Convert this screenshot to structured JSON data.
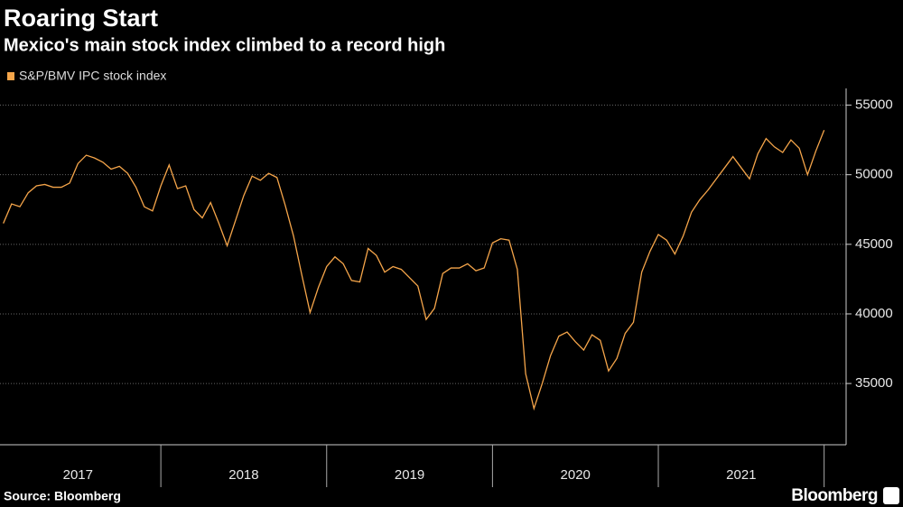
{
  "chart_data": {
    "type": "line",
    "title": "Roaring Start",
    "subtitle": "Mexico's main stock index climbed to a record high",
    "source": "Source: Bloomberg",
    "brand": "Bloomberg",
    "xlim": [
      2017.03,
      2022.04
    ],
    "xticks": [
      2018,
      2019,
      2020,
      2021,
      2022
    ],
    "year_labels": [
      2017,
      2018,
      2019,
      2020,
      2021
    ],
    "ylim": [
      30600,
      56200
    ],
    "yticks": [
      35000,
      40000,
      45000,
      50000,
      55000
    ],
    "grid": true,
    "series": [
      {
        "name": "S&P/BMV IPC stock index",
        "color": "#f5a54a",
        "x": [
          2017.05,
          2017.1,
          2017.15,
          2017.2,
          2017.25,
          2017.3,
          2017.35,
          2017.4,
          2017.45,
          2017.5,
          2017.55,
          2017.6,
          2017.65,
          2017.7,
          2017.75,
          2017.8,
          2017.85,
          2017.9,
          2017.95,
          2018.0,
          2018.05,
          2018.1,
          2018.15,
          2018.2,
          2018.25,
          2018.3,
          2018.35,
          2018.4,
          2018.45,
          2018.5,
          2018.55,
          2018.6,
          2018.65,
          2018.7,
          2018.75,
          2018.8,
          2018.85,
          2018.9,
          2018.95,
          2019.0,
          2019.05,
          2019.1,
          2019.15,
          2019.2,
          2019.25,
          2019.3,
          2019.35,
          2019.4,
          2019.45,
          2019.5,
          2019.55,
          2019.6,
          2019.65,
          2019.7,
          2019.75,
          2019.8,
          2019.85,
          2019.9,
          2019.95,
          2020.0,
          2020.05,
          2020.1,
          2020.15,
          2020.2,
          2020.25,
          2020.3,
          2020.35,
          2020.4,
          2020.45,
          2020.5,
          2020.55,
          2020.6,
          2020.65,
          2020.7,
          2020.75,
          2020.8,
          2020.85,
          2020.9,
          2020.95,
          2021.0,
          2021.05,
          2021.1,
          2021.15,
          2021.2,
          2021.25,
          2021.3,
          2021.35,
          2021.4,
          2021.45,
          2021.5,
          2021.55,
          2021.6,
          2021.65,
          2021.7,
          2021.75,
          2021.8,
          2021.85,
          2021.9,
          2021.95,
          2022.0
        ],
        "values": [
          46500,
          47900,
          47700,
          48700,
          49200,
          49300,
          49100,
          49100,
          49400,
          50800,
          51400,
          51200,
          50900,
          50400,
          50600,
          50100,
          49100,
          47700,
          47400,
          49200,
          50700,
          49000,
          49200,
          47500,
          46900,
          48000,
          46500,
          44900,
          46700,
          48500,
          49900,
          49600,
          50100,
          49800,
          47800,
          45600,
          42800,
          40100,
          41900,
          43400,
          44100,
          43600,
          42400,
          42300,
          44700,
          44200,
          43000,
          43400,
          43200,
          42600,
          42000,
          39600,
          40400,
          42900,
          43300,
          43300,
          43600,
          43100,
          43300,
          45100,
          45400,
          45300,
          43200,
          35700,
          33200,
          35000,
          37000,
          38400,
          38700,
          38000,
          37400,
          38500,
          38100,
          35900,
          36800,
          38600,
          39400,
          43000,
          44500,
          45700,
          45300,
          44300,
          45600,
          47300,
          48200,
          48900,
          49700,
          50500,
          51300,
          50500,
          49700,
          51500,
          52600,
          52000,
          51600,
          52500,
          51900,
          50000,
          51700,
          53200
        ]
      }
    ]
  }
}
